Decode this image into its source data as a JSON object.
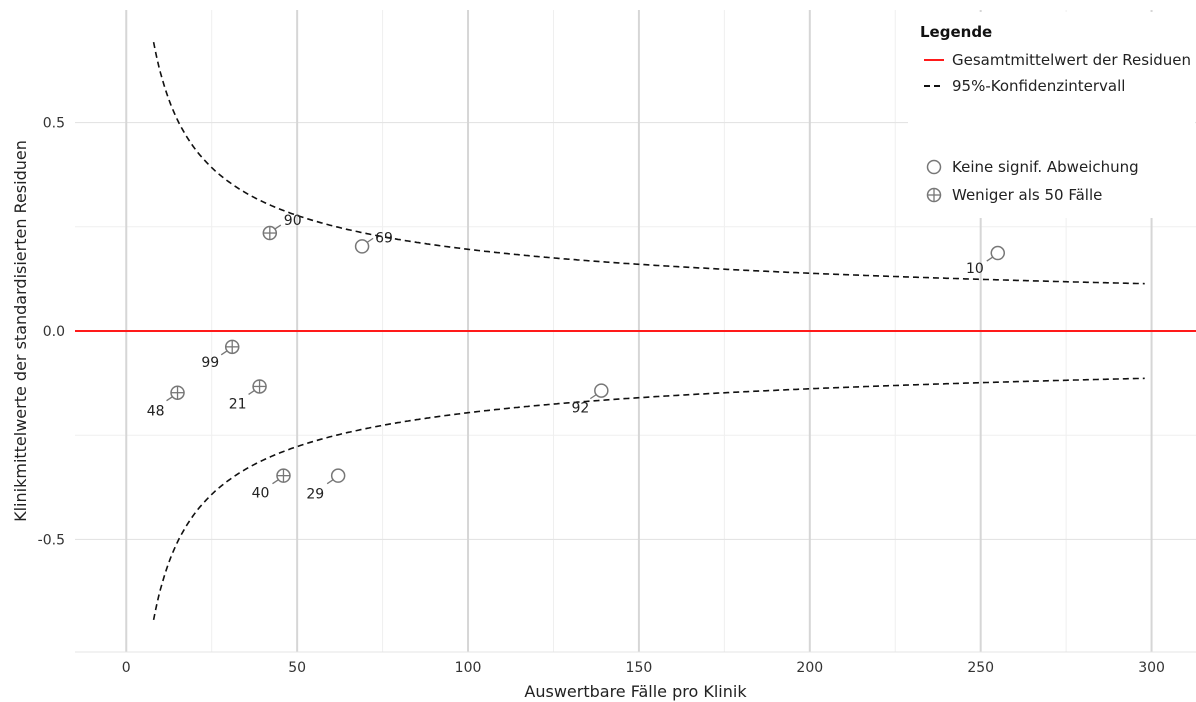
{
  "chart_data": {
    "type": "scatter",
    "xlabel": "Auswertbare Fälle pro Klinik",
    "ylabel": "Klinikmittelwerte der standardisierten Residuen",
    "xlim": [
      -15,
      313
    ],
    "ylim": [
      -0.77,
      0.77
    ],
    "x_ticks": [
      0,
      50,
      100,
      150,
      200,
      250,
      300
    ],
    "x_tick_labels": [
      "0",
      "50",
      "100",
      "150",
      "200",
      "250",
      "300"
    ],
    "y_ticks": [
      -0.5,
      0.0,
      0.5
    ],
    "y_tick_labels": [
      "-0.5",
      "0.0",
      "0.5"
    ],
    "grid": true,
    "reference_line": {
      "y": 0.0,
      "color": "#ff1a1a"
    },
    "confidence_interval": {
      "coefficient": 1.96,
      "x_from": 8,
      "x_to": 298
    },
    "points": [
      {
        "label": "90",
        "x": 42,
        "y": 0.235,
        "type": "few"
      },
      {
        "label": "69",
        "x": 69,
        "y": 0.203,
        "type": "normal"
      },
      {
        "label": "10",
        "x": 255,
        "y": 0.187,
        "type": "normal"
      },
      {
        "label": "99",
        "x": 31,
        "y": -0.038,
        "type": "few"
      },
      {
        "label": "21",
        "x": 39,
        "y": -0.133,
        "type": "few"
      },
      {
        "label": "48",
        "x": 15,
        "y": -0.148,
        "type": "few"
      },
      {
        "label": "92",
        "x": 139,
        "y": -0.143,
        "type": "normal"
      },
      {
        "label": "40",
        "x": 46,
        "y": -0.347,
        "type": "few"
      },
      {
        "label": "29",
        "x": 62,
        "y": -0.347,
        "type": "normal"
      }
    ],
    "legend": {
      "title": "Legende",
      "position": "top-right",
      "line_items": [
        {
          "label": "Gesamtmittelwert der Residuen",
          "style": "solid",
          "color": "#ff1a1a"
        },
        {
          "label": "95%-Konfidenzintervall",
          "style": "dashed",
          "color": "#111111"
        }
      ],
      "marker_items": [
        {
          "label": "Keine signif. Abweichung",
          "marker": "circle"
        },
        {
          "label": "Weniger als 50 Fälle",
          "marker": "circle-plus"
        }
      ]
    }
  }
}
